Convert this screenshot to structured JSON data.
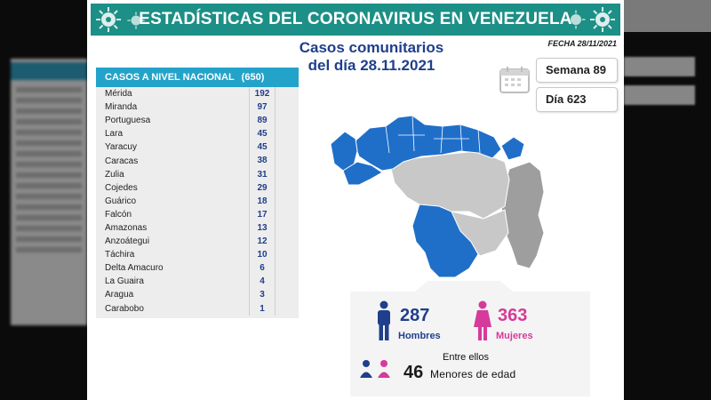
{
  "banner": {
    "title": "ESTADÍSTICAS DEL CORONAVIRUS EN VENEZUELA"
  },
  "header": {
    "subtitle_line1": "Casos comunitarios",
    "subtitle_line2": "del día 28.11.2021",
    "fecha": "FECHA 28/11/2021",
    "semana": "Semana 89",
    "dia": "Día 623"
  },
  "table": {
    "title": "CASOS A NIVEL NACIONAL",
    "total": "(650)",
    "rows": [
      {
        "name": "Mérida",
        "value": "192"
      },
      {
        "name": "Miranda",
        "value": "97"
      },
      {
        "name": "Portuguesa",
        "value": "89"
      },
      {
        "name": "Lara",
        "value": "45"
      },
      {
        "name": "Yaracuy",
        "value": "45"
      },
      {
        "name": "Caracas",
        "value": "38"
      },
      {
        "name": "Zulia",
        "value": "31"
      },
      {
        "name": "Cojedes",
        "value": "29"
      },
      {
        "name": "Guárico",
        "value": "18"
      },
      {
        "name": "Falcón",
        "value": "17"
      },
      {
        "name": "Amazonas",
        "value": "13"
      },
      {
        "name": "Anzoátegui",
        "value": "12"
      },
      {
        "name": "Táchira",
        "value": "10"
      },
      {
        "name": "Delta Amacuro",
        "value": "6"
      },
      {
        "name": "La Guaira",
        "value": "4"
      },
      {
        "name": "Aragua",
        "value": "3"
      },
      {
        "name": "Carabobo",
        "value": "1"
      }
    ]
  },
  "stats": {
    "men_count": "287",
    "men_label": "Hombres",
    "women_count": "363",
    "women_label": "Mujeres",
    "between_label": "Entre ellos",
    "minors_count": "46",
    "minors_label": "Menores de edad"
  },
  "icons": {
    "virus": "virus-icon",
    "calendar": "calendar-icon",
    "man": "man-icon",
    "woman": "woman-icon"
  },
  "colors": {
    "banner": "#1c8f86",
    "table_header": "#23a3c9",
    "map_affected": "#1f6fc9",
    "map_unaffected": "#c8c8c8",
    "map_dark": "#9e9e9e",
    "men": "#1f3f8c",
    "women": "#d63a9a"
  }
}
